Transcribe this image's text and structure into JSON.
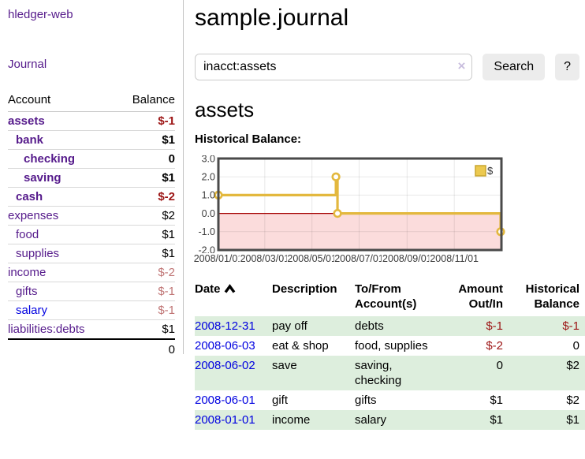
{
  "colors": {
    "link_purple": "#551a8b",
    "link_blue": "#0000e0",
    "negative_strong": "#9c1414",
    "negative_muted": "#c07575",
    "row_highlight_green": "#ddeedd",
    "chart_line_gold": "#e3b83e",
    "chart_legend_fill": "#ecc94f",
    "chart_negative_fill": "#fbdcdc",
    "chart_zero_line_red": "#a40000",
    "chart_border_gray": "#4a4a4a"
  },
  "sidebar": {
    "brand": "hledger-web",
    "journal_link": "Journal",
    "accounts_table": {
      "headers": {
        "account": "Account",
        "balance": "Balance"
      },
      "rows": [
        {
          "name": "assets",
          "depth": 1,
          "balance": "$-1",
          "bold": true,
          "balance_class": "neg"
        },
        {
          "name": "bank",
          "depth": 2,
          "balance": "$1",
          "bold": true,
          "balance_class": ""
        },
        {
          "name": "checking",
          "depth": 3,
          "balance": "0",
          "bold": true,
          "balance_class": ""
        },
        {
          "name": "saving",
          "depth": 3,
          "balance": "$1",
          "bold": true,
          "balance_class": ""
        },
        {
          "name": "cash",
          "depth": 2,
          "balance": "$-2",
          "bold": true,
          "balance_class": "neg"
        },
        {
          "name": "expenses",
          "depth": 1,
          "balance": "$2",
          "bold": false,
          "balance_class": ""
        },
        {
          "name": "food",
          "depth": 2,
          "balance": "$1",
          "bold": false,
          "balance_class": ""
        },
        {
          "name": "supplies",
          "depth": 2,
          "balance": "$1",
          "bold": false,
          "balance_class": ""
        },
        {
          "name": "income",
          "depth": 1,
          "balance": "$-2",
          "bold": false,
          "balance_class": "negm"
        },
        {
          "name": "gifts",
          "depth": 2,
          "balance": "$-1",
          "bold": false,
          "balance_class": "negm"
        },
        {
          "name": "salary",
          "depth": 2,
          "balance": "$-1",
          "bold": false,
          "balance_class": "negm",
          "link_class": "blue"
        },
        {
          "name": "liabilities:debts",
          "depth": 1,
          "balance": "$1",
          "bold": false,
          "balance_class": ""
        }
      ],
      "total": "0"
    }
  },
  "header": {
    "title": "sample.journal"
  },
  "search": {
    "query": "inacct:assets",
    "clear_icon": "×",
    "search_label": "Search",
    "help_label": "?"
  },
  "account_page": {
    "heading": "assets",
    "chart_label": "Historical Balance:"
  },
  "chart_data": {
    "type": "line",
    "style": "step",
    "title": "Historical Balance:",
    "x_range": [
      "2008-01-01",
      "2009-01-01"
    ],
    "ylim": [
      -2,
      3
    ],
    "y_ticks": [
      3.0,
      2.0,
      1.0,
      0.0,
      -1.0,
      -2.0
    ],
    "y_tick_labels": [
      "3.0",
      "2.0",
      "1.0",
      "0.0",
      "-1.0",
      "-2.0"
    ],
    "x_ticks": [
      {
        "label": "2008/01/01",
        "date": "2008-01-01"
      },
      {
        "label": "2008/03/01",
        "date": "2008-03-01"
      },
      {
        "label": "2008/05/01",
        "date": "2008-05-01"
      },
      {
        "label": "2008/07/01",
        "date": "2008-07-01"
      },
      {
        "label": "2008/09/01",
        "date": "2008-09-01"
      },
      {
        "label": "2008/11/01",
        "date": "2008-11-01"
      }
    ],
    "legend": {
      "label": "$",
      "position": "top-right"
    },
    "grid": true,
    "series": [
      {
        "name": "$",
        "points": [
          {
            "date": "2008-01-01",
            "value": 1
          },
          {
            "date": "2008-06-01",
            "value": 2
          },
          {
            "date": "2008-06-03",
            "value": 0
          },
          {
            "date": "2008-12-31",
            "value": -1
          }
        ]
      }
    ]
  },
  "register": {
    "headers": {
      "date": "Date",
      "description": "Description",
      "accounts_line1": "To/From",
      "accounts_line2": "Account(s)",
      "amount_line1": "Amount",
      "amount_line2": "Out/In",
      "balance_line1": "Historical",
      "balance_line2": "Balance"
    },
    "rows": [
      {
        "date": "2008-12-31",
        "description": "pay off",
        "accounts": "debts",
        "amount": "$-1",
        "amount_neg": true,
        "balance": "$-1",
        "balance_neg": true,
        "highlight": true
      },
      {
        "date": "2008-06-03",
        "description": "eat & shop",
        "accounts": "food, supplies",
        "amount": "$-2",
        "amount_neg": true,
        "balance": "0",
        "balance_neg": false,
        "highlight": false
      },
      {
        "date": "2008-06-02",
        "description": "save",
        "accounts": "saving, checking",
        "amount": "0",
        "amount_neg": false,
        "balance": "$2",
        "balance_neg": false,
        "highlight": true
      },
      {
        "date": "2008-06-01",
        "description": "gift",
        "accounts": "gifts",
        "amount": "$1",
        "amount_neg": false,
        "balance": "$2",
        "balance_neg": false,
        "highlight": false
      },
      {
        "date": "2008-01-01",
        "description": "income",
        "accounts": "salary",
        "amount": "$1",
        "amount_neg": false,
        "balance": "$1",
        "balance_neg": false,
        "highlight": true
      }
    ]
  }
}
